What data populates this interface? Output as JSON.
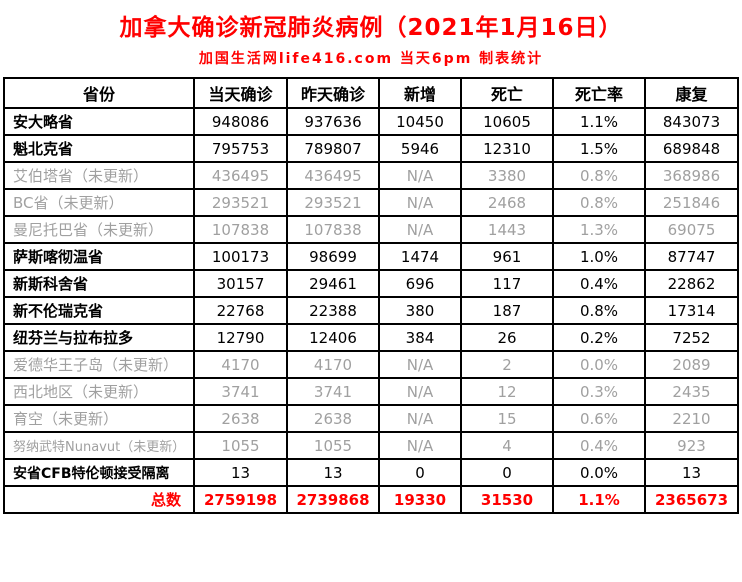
{
  "page": {
    "title": "加拿大确诊新冠肺炎病例（2021年1月16日）",
    "subtitle": "加国生活网life416.com 当天6pm 制表统计"
  },
  "table": {
    "headers": [
      "省份",
      "当天确诊",
      "昨天确诊",
      "新增",
      "死亡",
      "死亡率",
      "康复"
    ],
    "rows": [
      {
        "province": "安大略省",
        "today": "948086",
        "yesterday": "937636",
        "new_cases": "10450",
        "deaths": "10605",
        "death_rate": "1.1%",
        "recovered": "843073",
        "stale": false
      },
      {
        "province": "魁北克省",
        "today": "795753",
        "yesterday": "789807",
        "new_cases": "5946",
        "deaths": "12310",
        "death_rate": "1.5%",
        "recovered": "689848",
        "stale": false
      },
      {
        "province": "艾伯塔省（未更新）",
        "today": "436495",
        "yesterday": "436495",
        "new_cases": "N/A",
        "deaths": "3380",
        "death_rate": "0.8%",
        "recovered": "368986",
        "stale": true
      },
      {
        "province": "BC省（未更新）",
        "today": "293521",
        "yesterday": "293521",
        "new_cases": "N/A",
        "deaths": "2468",
        "death_rate": "0.8%",
        "recovered": "251846",
        "stale": true
      },
      {
        "province": "曼尼托巴省（未更新）",
        "today": "107838",
        "yesterday": "107838",
        "new_cases": "N/A",
        "deaths": "1443",
        "death_rate": "1.3%",
        "recovered": "69075",
        "stale": true
      },
      {
        "province": "萨斯喀彻温省",
        "today": "100173",
        "yesterday": "98699",
        "new_cases": "1474",
        "deaths": "961",
        "death_rate": "1.0%",
        "recovered": "87747",
        "stale": false
      },
      {
        "province": "新斯科舍省",
        "today": "30157",
        "yesterday": "29461",
        "new_cases": "696",
        "deaths": "117",
        "death_rate": "0.4%",
        "recovered": "22862",
        "stale": false
      },
      {
        "province": "新不伦瑞克省",
        "today": "22768",
        "yesterday": "22388",
        "new_cases": "380",
        "deaths": "187",
        "death_rate": "0.8%",
        "recovered": "17314",
        "stale": false
      },
      {
        "province": "纽芬兰与拉布拉多",
        "today": "12790",
        "yesterday": "12406",
        "new_cases": "384",
        "deaths": "26",
        "death_rate": "0.2%",
        "recovered": "7252",
        "stale": false
      },
      {
        "province": "爱德华王子岛（未更新）",
        "today": "4170",
        "yesterday": "4170",
        "new_cases": "N/A",
        "deaths": "2",
        "death_rate": "0.0%",
        "recovered": "2089",
        "stale": true
      },
      {
        "province": "西北地区（未更新）",
        "today": "3741",
        "yesterday": "3741",
        "new_cases": "N/A",
        "deaths": "12",
        "death_rate": "0.3%",
        "recovered": "2435",
        "stale": true
      },
      {
        "province": "育空（未更新）",
        "today": "2638",
        "yesterday": "2638",
        "new_cases": "N/A",
        "deaths": "15",
        "death_rate": "0.6%",
        "recovered": "2210",
        "stale": true
      },
      {
        "province": "努纳武特Nunavut（未更新）",
        "today": "1055",
        "yesterday": "1055",
        "new_cases": "N/A",
        "deaths": "4",
        "death_rate": "0.4%",
        "recovered": "923",
        "stale": true
      },
      {
        "province": "安省CFB特伦顿接受隔离",
        "today": "13",
        "yesterday": "13",
        "new_cases": "0",
        "deaths": "0",
        "death_rate": "0.0%",
        "recovered": "13",
        "stale": false
      }
    ],
    "total": {
      "label": "总数",
      "today": "2759198",
      "yesterday": "2739868",
      "new_cases": "19330",
      "deaths": "31530",
      "death_rate": "1.1%",
      "recovered": "2365673"
    }
  },
  "colors": {
    "accent_red": "#ff0000",
    "stale_gray": "#a0a0a0",
    "border_black": "#000000"
  }
}
